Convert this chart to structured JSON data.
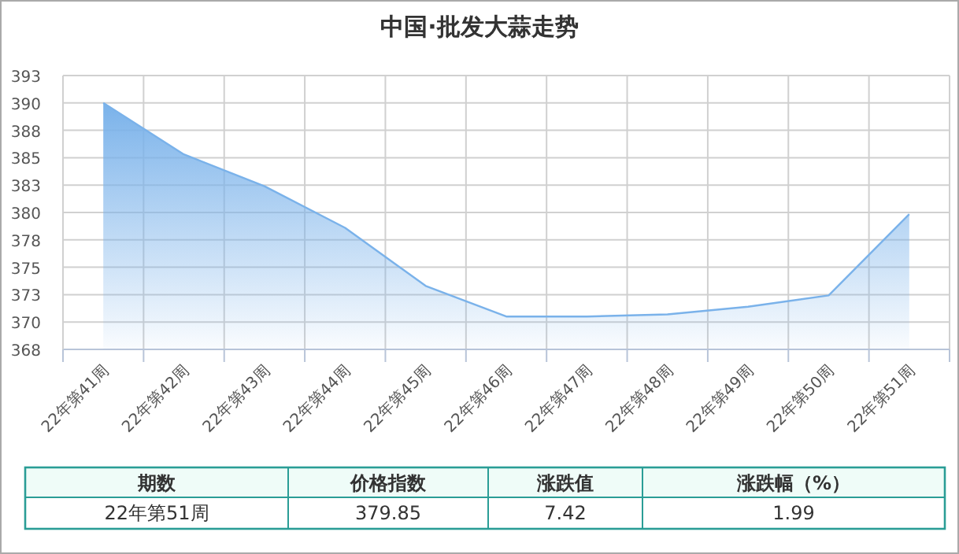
{
  "chart_data": {
    "type": "area",
    "title": "中国·批发大蒜走势",
    "categories": [
      "22年第41周",
      "22年第42周",
      "22年第43周",
      "22年第44周",
      "22年第45周",
      "22年第46周",
      "22年第47周",
      "22年第48周",
      "22年第49周",
      "22年第50周",
      "22年第51周"
    ],
    "values": [
      390.0,
      385.3,
      382.4,
      378.6,
      373.3,
      370.5,
      370.5,
      370.7,
      371.4,
      372.43,
      379.85
    ],
    "color": "#7ab2ea",
    "ylim": [
      367.5,
      392.5
    ],
    "yticks": [
      {
        "value": 367.5,
        "label": "368"
      },
      {
        "value": 370,
        "label": "370"
      },
      {
        "value": 372.5,
        "label": "373"
      },
      {
        "value": 375,
        "label": "375"
      },
      {
        "value": 377.5,
        "label": "378"
      },
      {
        "value": 380,
        "label": "380"
      },
      {
        "value": 382.5,
        "label": "383"
      },
      {
        "value": 385,
        "label": "385"
      },
      {
        "value": 387.5,
        "label": "388"
      },
      {
        "value": 390,
        "label": "390"
      },
      {
        "value": 392.5,
        "label": "393"
      }
    ],
    "grid": true,
    "marker": "none",
    "annotations": [
      "期数",
      "价格指数",
      "涨跌值",
      "涨跌幅（%）",
      "22年第51周",
      "379.85",
      "7.42",
      "1.99"
    ]
  }
}
